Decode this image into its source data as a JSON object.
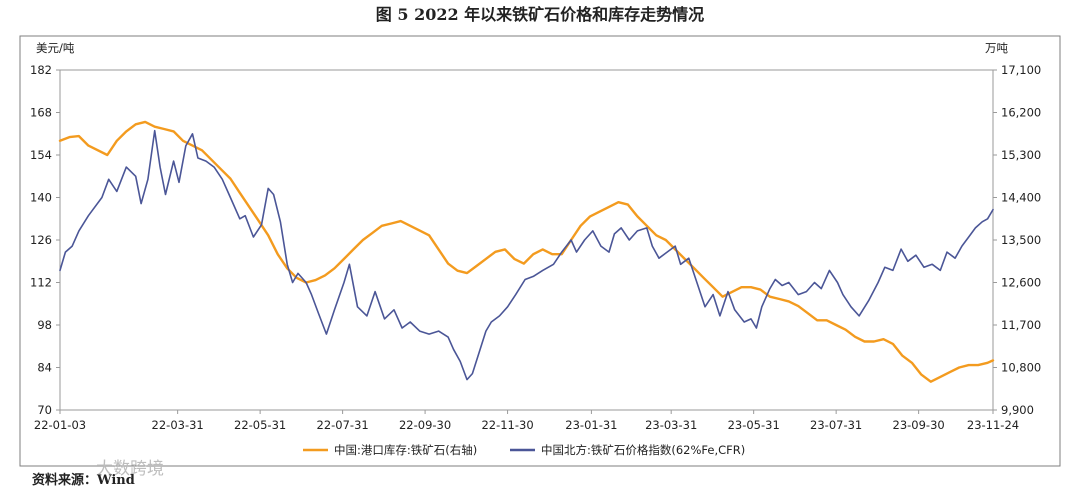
{
  "figure": {
    "title": "图 5   2022 年以来铁矿石价格和库存走势情况",
    "source": "资料来源：Wind",
    "watermark": "大数跨境"
  },
  "chart_data": {
    "type": "line",
    "left_unit": "美元/吨",
    "right_unit": "万吨",
    "left_axis": {
      "min": 70,
      "max": 182,
      "ticks": [
        70,
        84,
        98,
        112,
        126,
        140,
        154,
        168,
        182
      ],
      "tick_labels": [
        "70",
        "84",
        "98",
        "112",
        "126",
        "140",
        "154",
        "168",
        "182"
      ]
    },
    "right_axis": {
      "min": 9900,
      "max": 17100,
      "ticks": [
        9900,
        10800,
        11700,
        12600,
        13500,
        14400,
        15300,
        16200,
        17100
      ],
      "tick_labels": [
        "9,900",
        "10,800",
        "11,700",
        "12,600",
        "13,500",
        "14,400",
        "15,300",
        "16,200",
        "17,100"
      ]
    },
    "x_axis": {
      "start": "2022-01-03",
      "end": "2023-11-24",
      "ticks": [
        "2022-01-03",
        "2022-03-31",
        "2022-05-31",
        "2022-07-31",
        "2022-09-30",
        "2022-11-30",
        "2023-01-31",
        "2023-03-31",
        "2023-05-31",
        "2023-07-31",
        "2023-09-30",
        "2023-11-24"
      ],
      "tick_labels": [
        "22-01-03",
        "22-03-31",
        "22-05-31",
        "22-07-31",
        "22-09-30",
        "22-11-30",
        "23-01-31",
        "23-03-31",
        "23-05-31",
        "23-07-31",
        "23-09-30",
        "23-11-24"
      ]
    },
    "grid": false,
    "legend_position": "bottom",
    "series": [
      {
        "name": "中国:港口库存:铁矿石(右轴)",
        "axis": "right",
        "color": "#F39B1F",
        "points": [
          [
            "2022-01-03",
            15600
          ],
          [
            "2022-01-10",
            15680
          ],
          [
            "2022-01-17",
            15700
          ],
          [
            "2022-01-24",
            15500
          ],
          [
            "2022-02-07",
            15300
          ],
          [
            "2022-02-14",
            15600
          ],
          [
            "2022-02-21",
            15800
          ],
          [
            "2022-02-28",
            15950
          ],
          [
            "2022-03-07",
            16000
          ],
          [
            "2022-03-14",
            15900
          ],
          [
            "2022-03-21",
            15850
          ],
          [
            "2022-03-28",
            15800
          ],
          [
            "2022-04-04",
            15600
          ],
          [
            "2022-04-11",
            15500
          ],
          [
            "2022-04-18",
            15400
          ],
          [
            "2022-04-25",
            15200
          ],
          [
            "2022-05-02",
            15000
          ],
          [
            "2022-05-09",
            14800
          ],
          [
            "2022-05-16",
            14500
          ],
          [
            "2022-05-23",
            14200
          ],
          [
            "2022-05-30",
            13900
          ],
          [
            "2022-06-06",
            13600
          ],
          [
            "2022-06-13",
            13200
          ],
          [
            "2022-06-20",
            12900
          ],
          [
            "2022-06-27",
            12700
          ],
          [
            "2022-07-04",
            12600
          ],
          [
            "2022-07-11",
            12650
          ],
          [
            "2022-07-18",
            12750
          ],
          [
            "2022-07-25",
            12900
          ],
          [
            "2022-08-01",
            13100
          ],
          [
            "2022-08-08",
            13300
          ],
          [
            "2022-08-15",
            13500
          ],
          [
            "2022-08-22",
            13650
          ],
          [
            "2022-08-29",
            13800
          ],
          [
            "2022-09-05",
            13850
          ],
          [
            "2022-09-12",
            13900
          ],
          [
            "2022-09-19",
            13800
          ],
          [
            "2022-09-26",
            13700
          ],
          [
            "2022-10-03",
            13600
          ],
          [
            "2022-10-10",
            13300
          ],
          [
            "2022-10-17",
            13000
          ],
          [
            "2022-10-24",
            12850
          ],
          [
            "2022-10-31",
            12800
          ],
          [
            "2022-11-07",
            12950
          ],
          [
            "2022-11-14",
            13100
          ],
          [
            "2022-11-21",
            13250
          ],
          [
            "2022-11-28",
            13300
          ],
          [
            "2022-12-05",
            13100
          ],
          [
            "2022-12-12",
            13000
          ],
          [
            "2022-12-19",
            13200
          ],
          [
            "2022-12-26",
            13300
          ],
          [
            "2023-01-02",
            13200
          ],
          [
            "2023-01-09",
            13200
          ],
          [
            "2023-01-16",
            13500
          ],
          [
            "2023-01-23",
            13800
          ],
          [
            "2023-01-30",
            14000
          ],
          [
            "2023-02-06",
            14100
          ],
          [
            "2023-02-13",
            14200
          ],
          [
            "2023-02-20",
            14300
          ],
          [
            "2023-02-27",
            14250
          ],
          [
            "2023-03-06",
            14000
          ],
          [
            "2023-03-13",
            13800
          ],
          [
            "2023-03-20",
            13600
          ],
          [
            "2023-03-27",
            13500
          ],
          [
            "2023-04-03",
            13300
          ],
          [
            "2023-04-10",
            13100
          ],
          [
            "2023-04-17",
            12900
          ],
          [
            "2023-04-24",
            12700
          ],
          [
            "2023-05-01",
            12500
          ],
          [
            "2023-05-08",
            12300
          ],
          [
            "2023-05-15",
            12400
          ],
          [
            "2023-05-22",
            12500
          ],
          [
            "2023-05-29",
            12500
          ],
          [
            "2023-06-05",
            12450
          ],
          [
            "2023-06-12",
            12300
          ],
          [
            "2023-06-19",
            12250
          ],
          [
            "2023-06-26",
            12200
          ],
          [
            "2023-07-03",
            12100
          ],
          [
            "2023-07-10",
            11950
          ],
          [
            "2023-07-17",
            11800
          ],
          [
            "2023-07-24",
            11800
          ],
          [
            "2023-07-31",
            11700
          ],
          [
            "2023-08-07",
            11600
          ],
          [
            "2023-08-14",
            11450
          ],
          [
            "2023-08-21",
            11350
          ],
          [
            "2023-08-28",
            11350
          ],
          [
            "2023-09-04",
            11400
          ],
          [
            "2023-09-11",
            11300
          ],
          [
            "2023-09-18",
            11050
          ],
          [
            "2023-09-25",
            10900
          ],
          [
            "2023-10-02",
            10650
          ],
          [
            "2023-10-09",
            10500
          ],
          [
            "2023-10-16",
            10600
          ],
          [
            "2023-10-23",
            10700
          ],
          [
            "2023-10-30",
            10800
          ],
          [
            "2023-11-06",
            10850
          ],
          [
            "2023-11-13",
            10850
          ],
          [
            "2023-11-20",
            10900
          ],
          [
            "2023-11-24",
            10950
          ]
        ]
      },
      {
        "name": "中国北方:铁矿石价格指数(62%Fe,CFR)",
        "axis": "left",
        "color": "#4B5697",
        "points": [
          [
            "2022-01-03",
            116
          ],
          [
            "2022-01-07",
            122
          ],
          [
            "2022-01-12",
            124
          ],
          [
            "2022-01-17",
            129
          ],
          [
            "2022-01-24",
            134
          ],
          [
            "2022-02-03",
            140
          ],
          [
            "2022-02-08",
            146
          ],
          [
            "2022-02-14",
            142
          ],
          [
            "2022-02-21",
            150
          ],
          [
            "2022-02-28",
            147
          ],
          [
            "2022-03-04",
            138
          ],
          [
            "2022-03-09",
            146
          ],
          [
            "2022-03-14",
            162
          ],
          [
            "2022-03-18",
            150
          ],
          [
            "2022-03-22",
            141
          ],
          [
            "2022-03-28",
            152
          ],
          [
            "2022-04-01",
            145
          ],
          [
            "2022-04-06",
            157
          ],
          [
            "2022-04-11",
            161
          ],
          [
            "2022-04-15",
            153
          ],
          [
            "2022-04-21",
            152
          ],
          [
            "2022-04-27",
            150
          ],
          [
            "2022-05-03",
            146
          ],
          [
            "2022-05-09",
            140
          ],
          [
            "2022-05-16",
            133
          ],
          [
            "2022-05-20",
            134
          ],
          [
            "2022-05-26",
            127
          ],
          [
            "2022-06-01",
            131
          ],
          [
            "2022-06-06",
            143
          ],
          [
            "2022-06-10",
            141
          ],
          [
            "2022-06-15",
            132
          ],
          [
            "2022-06-20",
            118
          ],
          [
            "2022-06-24",
            112
          ],
          [
            "2022-06-28",
            115
          ],
          [
            "2022-07-04",
            112
          ],
          [
            "2022-07-08",
            108
          ],
          [
            "2022-07-13",
            102
          ],
          [
            "2022-07-19",
            95
          ],
          [
            "2022-07-25",
            103
          ],
          [
            "2022-08-01",
            112
          ],
          [
            "2022-08-05",
            118
          ],
          [
            "2022-08-11",
            104
          ],
          [
            "2022-08-18",
            101
          ],
          [
            "2022-08-24",
            109
          ],
          [
            "2022-08-31",
            100
          ],
          [
            "2022-09-07",
            103
          ],
          [
            "2022-09-13",
            97
          ],
          [
            "2022-09-19",
            99
          ],
          [
            "2022-09-26",
            96
          ],
          [
            "2022-10-03",
            95
          ],
          [
            "2022-10-10",
            96
          ],
          [
            "2022-10-17",
            94
          ],
          [
            "2022-10-21",
            90
          ],
          [
            "2022-10-26",
            86
          ],
          [
            "2022-10-31",
            80
          ],
          [
            "2022-11-04",
            82
          ],
          [
            "2022-11-09",
            89
          ],
          [
            "2022-11-14",
            96
          ],
          [
            "2022-11-18",
            99
          ],
          [
            "2022-11-24",
            101
          ],
          [
            "2022-11-30",
            104
          ],
          [
            "2022-12-06",
            108
          ],
          [
            "2022-12-13",
            113
          ],
          [
            "2022-12-19",
            114
          ],
          [
            "2022-12-26",
            116
          ],
          [
            "2023-01-03",
            118
          ],
          [
            "2023-01-09",
            122
          ],
          [
            "2023-01-16",
            126
          ],
          [
            "2023-01-20",
            122
          ],
          [
            "2023-01-26",
            126
          ],
          [
            "2023-02-01",
            129
          ],
          [
            "2023-02-07",
            124
          ],
          [
            "2023-02-13",
            122
          ],
          [
            "2023-02-17",
            128
          ],
          [
            "2023-02-22",
            130
          ],
          [
            "2023-02-28",
            126
          ],
          [
            "2023-03-06",
            129
          ],
          [
            "2023-03-13",
            130
          ],
          [
            "2023-03-17",
            124
          ],
          [
            "2023-03-22",
            120
          ],
          [
            "2023-03-28",
            122
          ],
          [
            "2023-04-03",
            124
          ],
          [
            "2023-04-07",
            118
          ],
          [
            "2023-04-13",
            120
          ],
          [
            "2023-04-19",
            112
          ],
          [
            "2023-04-25",
            104
          ],
          [
            "2023-05-01",
            108
          ],
          [
            "2023-05-06",
            101
          ],
          [
            "2023-05-12",
            109
          ],
          [
            "2023-05-17",
            103
          ],
          [
            "2023-05-24",
            99
          ],
          [
            "2023-05-29",
            100
          ],
          [
            "2023-06-02",
            97
          ],
          [
            "2023-06-06",
            104
          ],
          [
            "2023-06-12",
            110
          ],
          [
            "2023-06-16",
            113
          ],
          [
            "2023-06-21",
            111
          ],
          [
            "2023-06-26",
            112
          ],
          [
            "2023-07-03",
            108
          ],
          [
            "2023-07-09",
            109
          ],
          [
            "2023-07-15",
            112
          ],
          [
            "2023-07-20",
            110
          ],
          [
            "2023-07-26",
            116
          ],
          [
            "2023-08-01",
            112
          ],
          [
            "2023-08-05",
            108
          ],
          [
            "2023-08-11",
            104
          ],
          [
            "2023-08-17",
            101
          ],
          [
            "2023-08-24",
            106
          ],
          [
            "2023-08-31",
            112
          ],
          [
            "2023-09-05",
            117
          ],
          [
            "2023-09-11",
            116
          ],
          [
            "2023-09-17",
            123
          ],
          [
            "2023-09-22",
            119
          ],
          [
            "2023-09-28",
            121
          ],
          [
            "2023-10-04",
            117
          ],
          [
            "2023-10-10",
            118
          ],
          [
            "2023-10-16",
            116
          ],
          [
            "2023-10-21",
            122
          ],
          [
            "2023-10-27",
            120
          ],
          [
            "2023-11-01",
            124
          ],
          [
            "2023-11-06",
            127
          ],
          [
            "2023-11-11",
            130
          ],
          [
            "2023-11-16",
            132
          ],
          [
            "2023-11-20",
            133
          ],
          [
            "2023-11-24",
            136
          ]
        ]
      }
    ]
  }
}
